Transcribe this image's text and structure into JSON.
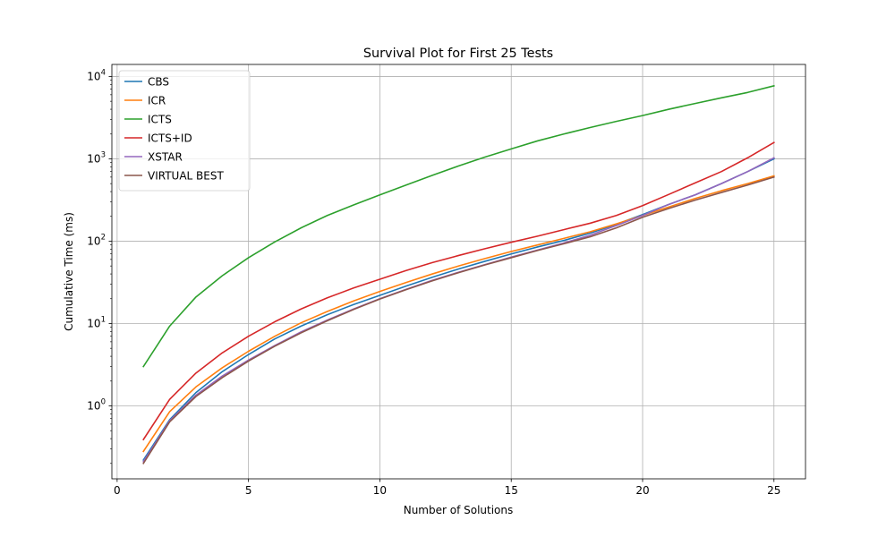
{
  "chart_data": {
    "type": "line",
    "title": "Survival Plot for First 25 Tests",
    "xlabel": "Number of Solutions",
    "ylabel": "Cumulative Time (ms)",
    "xlim": [
      -0.2,
      26.2
    ],
    "ylim": [
      0.13,
      14000
    ],
    "yscale": "log",
    "grid": true,
    "legend_position": "top-left",
    "x_ticks": [
      0,
      5,
      10,
      15,
      20,
      25
    ],
    "y_ticks": [
      {
        "value": 1,
        "base": "10",
        "exp": "0"
      },
      {
        "value": 10,
        "base": "10",
        "exp": "1"
      },
      {
        "value": 100,
        "base": "10",
        "exp": "2"
      },
      {
        "value": 1000,
        "base": "10",
        "exp": "3"
      },
      {
        "value": 10000,
        "base": "10",
        "exp": "4"
      }
    ],
    "x": [
      1,
      2,
      3,
      4,
      5,
      6,
      7,
      8,
      9,
      10,
      11,
      12,
      13,
      14,
      15,
      16,
      17,
      18,
      19,
      20,
      21,
      22,
      23,
      24,
      25
    ],
    "series": [
      {
        "name": "CBS",
        "color": "#1f77b4",
        "values": [
          0.22,
          0.68,
          1.45,
          2.6,
          4.2,
          6.5,
          9.3,
          12.8,
          17.0,
          22.0,
          28.5,
          36.5,
          46.0,
          57.0,
          70.0,
          85.0,
          102.0,
          125.0,
          160.0,
          210.0,
          280.0,
          365.0,
          500.0,
          700.0,
          1000.0
        ]
      },
      {
        "name": "ICR",
        "color": "#ff7f0e",
        "values": [
          0.28,
          0.85,
          1.7,
          2.9,
          4.6,
          7.0,
          10.2,
          14.0,
          18.8,
          24.5,
          31.5,
          40.0,
          50.0,
          61.5,
          75.0,
          90.0,
          108.0,
          130.0,
          162.0,
          205.0,
          260.0,
          330.0,
          410.0,
          500.0,
          620.0
        ]
      },
      {
        "name": "ICTS",
        "color": "#2ca02c",
        "values": [
          3.0,
          9.3,
          21.0,
          38.0,
          63.0,
          98.0,
          145.0,
          205.0,
          275.0,
          365.0,
          480.0,
          630.0,
          820.0,
          1050.0,
          1320.0,
          1650.0,
          2000.0,
          2400.0,
          2850.0,
          3350.0,
          4000.0,
          4700.0,
          5500.0,
          6400.0,
          7700.0
        ]
      },
      {
        "name": "ICTS+ID",
        "color": "#d62728",
        "values": [
          0.39,
          1.2,
          2.5,
          4.4,
          7.0,
          10.5,
          15.0,
          20.5,
          27.0,
          34.5,
          44.0,
          55.0,
          67.0,
          81.0,
          97.0,
          115.0,
          138.0,
          165.0,
          205.0,
          270.0,
          370.0,
          510.0,
          700.0,
          1030.0,
          1580.0
        ]
      },
      {
        "name": "XSTAR",
        "color": "#9467bd",
        "values": [
          0.21,
          0.66,
          1.35,
          2.3,
          3.6,
          5.4,
          7.9,
          11.0,
          15.0,
          20.0,
          26.0,
          33.5,
          42.0,
          52.0,
          64.0,
          78.0,
          95.0,
          118.0,
          155.0,
          205.0,
          280.0,
          365.0,
          500.0,
          700.0,
          1030.0
        ]
      },
      {
        "name": "VIRTUAL BEST",
        "color": "#8c564b",
        "values": [
          0.2,
          0.64,
          1.3,
          2.2,
          3.5,
          5.3,
          7.7,
          10.8,
          14.8,
          19.8,
          25.8,
          33.0,
          41.5,
          51.5,
          63.0,
          77.0,
          93.0,
          113.0,
          145.0,
          195.0,
          250.0,
          315.0,
          390.0,
          480.0,
          600.0
        ]
      }
    ]
  }
}
